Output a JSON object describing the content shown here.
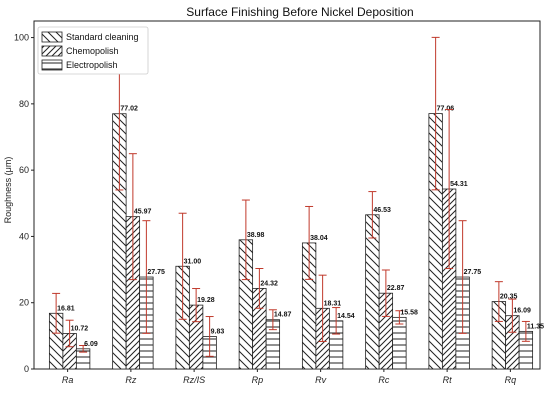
{
  "chart_data": {
    "type": "bar",
    "title": "Surface Finishing Before Nickel Deposition",
    "xlabel": "",
    "ylabel": "Roughness (μm)",
    "ylim": [
      0,
      105
    ],
    "yticks": [
      0,
      20,
      40,
      60,
      80,
      100
    ],
    "categories": [
      "Ra",
      "Rz",
      "Rz/ISO",
      "Rp",
      "Rv",
      "Rc",
      "Rt",
      "Rq"
    ],
    "category_labels": [
      "Ra",
      "Rz",
      "Rz/IS",
      "Rp",
      "Rv",
      "Rc",
      "Rt",
      "Rq"
    ],
    "grid": false,
    "legend_position": "top-left",
    "series": [
      {
        "name": "Standard cleaning",
        "hatch": "backslash",
        "values": [
          16.81,
          77.02,
          31.0,
          38.98,
          38.04,
          46.53,
          77.06,
          20.35
        ],
        "labels": [
          "16.81",
          "77.02",
          "31.00",
          "38.98",
          "38.04",
          "46.53",
          "77.06",
          "20.35"
        ],
        "error": [
          6,
          23,
          16,
          12,
          11,
          7,
          23,
          6
        ]
      },
      {
        "name": "Chemopolish",
        "hatch": "slash",
        "values": [
          10.72,
          45.97,
          19.28,
          24.32,
          18.31,
          22.87,
          54.31,
          16.09
        ],
        "labels": [
          "10.72",
          "45.97",
          "19.28",
          "24.32",
          "18.31",
          "22.87",
          "54.31",
          "16.09"
        ],
        "error": [
          4,
          19,
          5,
          6,
          10,
          7,
          24,
          5
        ]
      },
      {
        "name": "Electropolish",
        "hatch": "horizontal",
        "values": [
          6.09,
          27.75,
          9.83,
          14.87,
          14.54,
          15.58,
          27.75,
          11.35
        ],
        "labels": [
          "6.09",
          "27.75",
          "9.83",
          "14.87",
          "14.54",
          "15.58",
          "27.75",
          "11.35"
        ],
        "error": [
          1,
          17,
          6,
          3,
          4,
          2,
          17,
          3
        ]
      }
    ],
    "colors": {
      "bar_edge": "#222222",
      "error_bar": "#c0392b",
      "axis": "#222222"
    }
  }
}
